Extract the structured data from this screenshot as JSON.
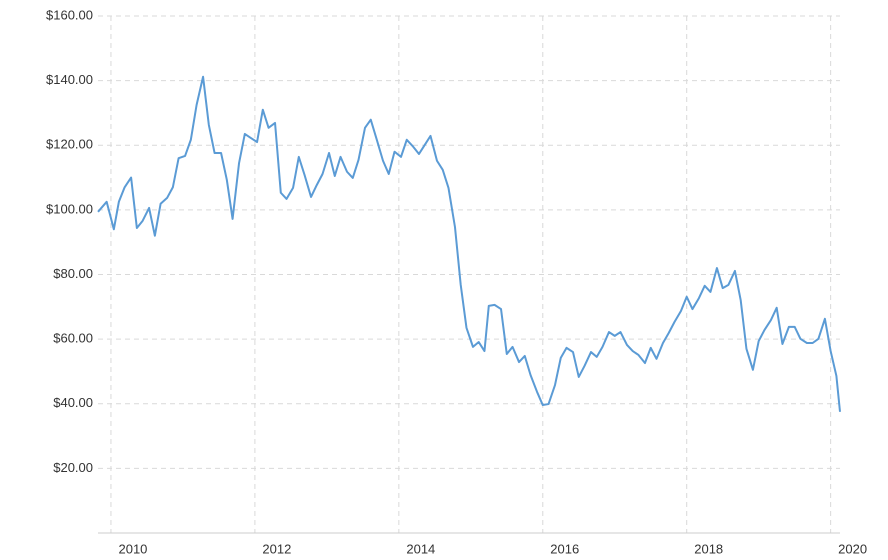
{
  "chart_data": {
    "type": "line",
    "x": [
      2009.82,
      2009.94,
      2010.04,
      2010.11,
      2010.19,
      2010.28,
      2010.36,
      2010.44,
      2010.53,
      2010.61,
      2010.69,
      2010.78,
      2010.86,
      2010.94,
      2011.03,
      2011.11,
      2011.19,
      2011.28,
      2011.36,
      2011.44,
      2011.53,
      2011.61,
      2011.69,
      2011.78,
      2011.86,
      2011.94,
      2012.03,
      2012.11,
      2012.19,
      2012.28,
      2012.36,
      2012.44,
      2012.53,
      2012.61,
      2012.69,
      2012.78,
      2012.86,
      2012.94,
      2013.03,
      2013.11,
      2013.19,
      2013.28,
      2013.36,
      2013.44,
      2013.53,
      2013.61,
      2013.69,
      2013.78,
      2013.86,
      2013.94,
      2014.03,
      2014.11,
      2014.19,
      2014.28,
      2014.36,
      2014.44,
      2014.53,
      2014.61,
      2014.69,
      2014.78,
      2014.86,
      2014.94,
      2015.03,
      2015.11,
      2015.19,
      2015.25,
      2015.33,
      2015.42,
      2015.5,
      2015.58,
      2015.67,
      2015.75,
      2015.83,
      2015.92,
      2016.0,
      2016.08,
      2016.17,
      2016.25,
      2016.33,
      2016.42,
      2016.5,
      2016.58,
      2016.67,
      2016.75,
      2016.83,
      2016.92,
      2017.0,
      2017.08,
      2017.17,
      2017.25,
      2017.33,
      2017.42,
      2017.5,
      2017.58,
      2017.67,
      2017.75,
      2017.83,
      2017.92,
      2018.0,
      2018.08,
      2018.17,
      2018.25,
      2018.33,
      2018.42,
      2018.5,
      2018.58,
      2018.67,
      2018.75,
      2018.83,
      2018.92,
      2019.0,
      2019.08,
      2019.17,
      2019.25,
      2019.33,
      2019.42,
      2019.5,
      2019.58,
      2019.67,
      2019.75,
      2019.83,
      2019.92,
      2020.0,
      2020.08,
      2020.13
    ],
    "series": [
      {
        "color": "#5b9bd5",
        "values": [
          99.4,
          102.5,
          94,
          102.5,
          107,
          110,
          94.4,
          96.6,
          100.6,
          92,
          101.9,
          103.7,
          107,
          116,
          116.7,
          121.7,
          132.5,
          141.2,
          126.3,
          117.6,
          117.6,
          109.3,
          97.2,
          114.5,
          123.5,
          122.3,
          121,
          131,
          125.4,
          126.9,
          105.3,
          103.4,
          106.8,
          116.4,
          110.8,
          104,
          107.7,
          111.1,
          117.6,
          110.5,
          116.4,
          111.8,
          109.9,
          115.5,
          125.4,
          127.9,
          122,
          115.2,
          111.1,
          118,
          116.4,
          121.7,
          119.8,
          117.3,
          120.1,
          122.9,
          115.2,
          112.4,
          106.8,
          94.7,
          76.8,
          63.5,
          57.6,
          59.1,
          56.3,
          70.3,
          70.6,
          69.3,
          55.4,
          57.6,
          52.9,
          54.8,
          48.9,
          43.7,
          39.6,
          39.9,
          45.8,
          54.2,
          57.3,
          56,
          48.3,
          51.7,
          56,
          54.5,
          57.6,
          62.2,
          61,
          62.2,
          58.2,
          56.3,
          55.1,
          52.6,
          57.3,
          53.9,
          58.8,
          61.9,
          65.3,
          68.7,
          73.1,
          69.3,
          72.7,
          76.5,
          74.6,
          82,
          75.8,
          76.8,
          81.1,
          72.1,
          57,
          50.5,
          59.4,
          62.8,
          65.9,
          69.7,
          58.5,
          63.8,
          63.8,
          60.1,
          58.8,
          58.8,
          60.1,
          66.3,
          56.3,
          48.6,
          37.5
        ]
      }
    ],
    "xlim": [
      2009.82,
      2020.13
    ],
    "xticks": [
      2010,
      2012,
      2014,
      2016,
      2018,
      2020
    ],
    "ylim": [
      0,
      160
    ],
    "yticks": [
      {
        "value": 20,
        "label": "$20.00"
      },
      {
        "value": 40,
        "label": "$40.00"
      },
      {
        "value": 60,
        "label": "$60.00"
      },
      {
        "value": 80,
        "label": "$80.00"
      },
      {
        "value": 100,
        "label": "$100.00"
      },
      {
        "value": 120,
        "label": "$120.00"
      },
      {
        "value": 140,
        "label": "$140.00"
      },
      {
        "value": 160,
        "label": "$160.00"
      }
    ],
    "grid": true
  }
}
